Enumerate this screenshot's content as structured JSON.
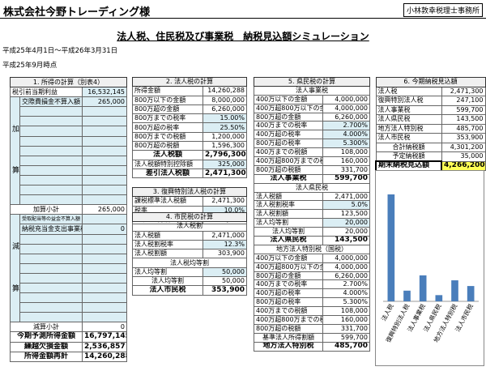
{
  "header": {
    "title": "株式会社今野トレーディング様",
    "firm": "小林敦幸税理士事務所",
    "subtitle": "法人税、住民税及び事業税　納税見込額シミュレーション",
    "period": "平成25年4月1日～平成26年3月31日",
    "as_of": "平成25年9月時点"
  },
  "income": {
    "title": "1. 所得の計算（別表4）",
    "first": [
      "税引前当期利益",
      "16,532,145"
    ],
    "add_label": [
      "加",
      "算"
    ],
    "add_rows": [
      [
        "交際費損金不算入額",
        "265,000"
      ]
    ],
    "add_total": [
      "加算小計",
      "265,000"
    ],
    "sub_label": [
      "減",
      "算"
    ],
    "sub_rows": [
      [
        "受取配当等の益金不算入額"
      ],
      [
        "納税充当金支出事業税等",
        "0"
      ]
    ],
    "sub_total": [
      "減算小計",
      "0"
    ],
    "totals": [
      [
        "今期予測所得金額",
        "16,797,145"
      ],
      [
        "繰越欠損金額",
        "2,536,857"
      ],
      [
        "所得金額再計",
        "14,260,288"
      ]
    ]
  },
  "sections": [
    {
      "title": "2. 法人税の計算",
      "rows": [
        [
          "所得金額",
          "14,260,288"
        ],
        [
          "800万以下の金額",
          "8,000,000"
        ],
        [
          "800万超の金額",
          "6,260,000"
        ],
        [
          "800万までの税率",
          "15.00%"
        ],
        [
          "800万超の税率",
          "25.50%"
        ],
        [
          "800万までの税額",
          "1,200,000"
        ],
        [
          "800万超の税額",
          "1,596,300"
        ],
        [
          "法人税額",
          "2,796,300"
        ],
        [
          "法人税額特別控除額",
          "325,000"
        ],
        [
          "差引法人税額",
          "2,471,300"
        ]
      ]
    },
    {
      "title": "3. 復興特別法人税の計算",
      "rows": [
        [
          "課税標準法人税額",
          "2,471,300"
        ],
        [
          "税率",
          "10.0%"
        ],
        [
          "復興特別法人税",
          "247,100"
        ]
      ]
    },
    {
      "title": "4. 市民税の計算",
      "rows": [
        [
          "法人税割"
        ],
        [
          "法人税額",
          "2,471,000"
        ],
        [
          "法人税割税率",
          "12.3%"
        ],
        [
          "法人税割額",
          "303,900"
        ],
        [
          "法人税均等割"
        ],
        [
          "法人均等割",
          "50,000"
        ],
        [
          "法人均等割",
          "50,000"
        ],
        [
          "法人市民税",
          "353,900"
        ]
      ]
    },
    {
      "title": "5. 県民税の計算",
      "rows": [
        [
          "法人事業税"
        ],
        [
          "400万以下の金額",
          "4,000,000"
        ],
        [
          "400万超800万以下の金額",
          "4,000,000"
        ],
        [
          "800万超の金額",
          "6,260,000"
        ],
        [
          "400万までの税率",
          "2.700%"
        ],
        [
          "400万超の税率",
          "4.000%"
        ],
        [
          "800万超の税率",
          "5.300%"
        ],
        [
          "400万までの税額",
          "108,000"
        ],
        [
          "400万超800万までの税額",
          "160,000"
        ],
        [
          "800万超の税額",
          "331,700"
        ],
        [
          "法人事業税",
          "599,700"
        ],
        [
          "法人県民税"
        ],
        [
          "法人税額",
          "2,471,000"
        ],
        [
          "法人税割税率",
          "5.0%"
        ],
        [
          "法人税割額",
          "123,500"
        ],
        [
          "法人均等割",
          "20,000"
        ],
        [
          "法人均等割",
          "20,000"
        ],
        [
          "法人県民税",
          "143,500"
        ],
        [
          "地方法人特別税（国税）"
        ],
        [
          "400万以下の金額",
          "4,000,000"
        ],
        [
          "400万超800万以下の金額",
          "4,000,000"
        ],
        [
          "800万超の金額",
          "6,260,000"
        ],
        [
          "400万までの税率",
          "2.700%"
        ],
        [
          "400万超の税率",
          "4.000%"
        ],
        [
          "800万超の税率",
          "5.300%"
        ],
        [
          "400万までの税額",
          "108,000"
        ],
        [
          "400万超800万までの税額",
          "160,000"
        ],
        [
          "800万超の税額",
          "331,700"
        ],
        [
          "基準法人所得割額",
          "599,700"
        ],
        [
          "地方法人特別税",
          "485,700"
        ]
      ]
    },
    {
      "title": "6. 今期納税見込額",
      "rows": [
        [
          "法人税",
          "2,471,300"
        ],
        [
          "復興特別法人税",
          "247,100"
        ],
        [
          "法人事業税",
          "599,700"
        ],
        [
          "法人県民税",
          "143,500"
        ],
        [
          "地方法人特別税",
          "485,700"
        ],
        [
          "法人市民税",
          "353,900"
        ],
        [
          "合計納税額",
          "4,301,200"
        ],
        [
          "予定納税額",
          "35,000"
        ],
        [
          "期末納税見込額",
          "4,266,200"
        ]
      ]
    }
  ],
  "chart_data": {
    "type": "bar",
    "categories": [
      "法人税",
      "復興特別法人税",
      "法人事業税",
      "法人県民税",
      "地方法人特別税",
      "法人市民税"
    ],
    "values": [
      2471300,
      247100,
      599700,
      143500,
      485700,
      353900
    ],
    "color": "#4a7ebb"
  }
}
